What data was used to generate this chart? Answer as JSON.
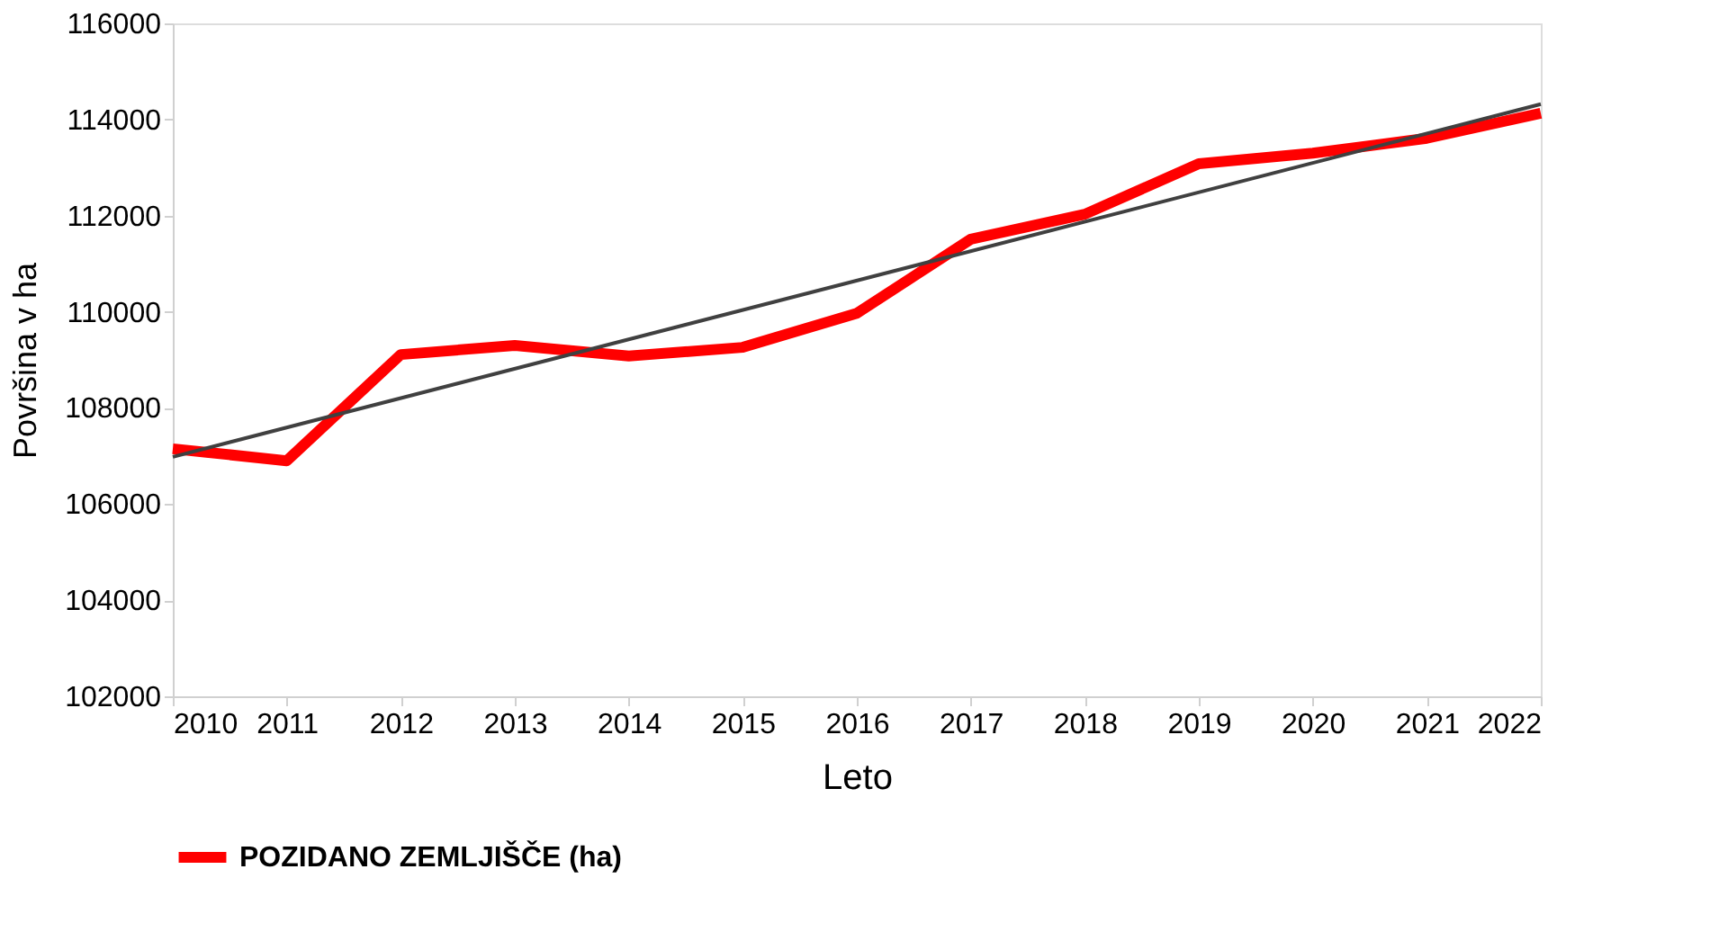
{
  "chart_data": {
    "type": "line",
    "xlabel": "Leto",
    "ylabel": "Površina v ha",
    "x": [
      2010,
      2011,
      2012,
      2013,
      2014,
      2015,
      2016,
      2017,
      2018,
      2019,
      2020,
      2021,
      2022
    ],
    "series": [
      {
        "name": "POZIDANO ZEMLJIŠČE (ha)",
        "color": "#ff0000",
        "values": [
          107150,
          106900,
          109110,
          109300,
          109080,
          109260,
          109970,
          111510,
          112030,
          113080,
          113300,
          113610,
          114130
        ]
      },
      {
        "type": "line",
        "color": "#404040",
        "x": [
          2010,
          2022
        ],
        "values": [
          106980,
          114320
        ]
      }
    ],
    "xlim": [
      2010,
      2022
    ],
    "xticks": [
      2010,
      2011,
      2012,
      2013,
      2014,
      2015,
      2016,
      2017,
      2018,
      2019,
      2020,
      2021,
      2022
    ],
    "ylim": [
      102000,
      116000
    ],
    "yticks": [
      102000,
      104000,
      106000,
      108000,
      110000,
      112000,
      114000,
      116000
    ],
    "grid": false,
    "legend": "bottom",
    "marker": "none",
    "line_style": "solid"
  }
}
